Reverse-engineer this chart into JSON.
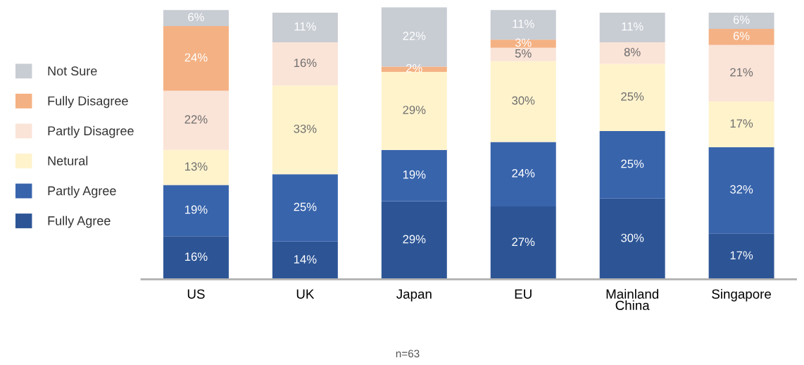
{
  "chart_data": {
    "type": "bar",
    "stacked": true,
    "legend": "left",
    "categories": [
      "US",
      "UK",
      "Japan",
      "EU",
      "Mainland\nChina",
      "Singapore"
    ],
    "series": [
      {
        "name": "Fully Agree",
        "color": "#2d5596",
        "values": [
          16,
          14,
          29,
          27,
          30,
          17
        ],
        "value_labels": [
          "16%",
          "14%",
          "29%",
          "27%",
          "30%",
          "17%"
        ]
      },
      {
        "name": "Partly Agree",
        "color": "#3864ac",
        "values": [
          19,
          25,
          19,
          24,
          25,
          32
        ],
        "value_labels": [
          "19%",
          "25%",
          "19%",
          "24%",
          "25%",
          "32%"
        ]
      },
      {
        "name": "Netural",
        "color": "#fff3cc",
        "values": [
          13,
          33,
          29,
          30,
          25,
          17
        ],
        "value_labels": [
          "13%",
          "33%",
          "29%",
          "30%",
          "25%",
          "17%"
        ]
      },
      {
        "name": "Partly Disagree",
        "color": "#fae3d7",
        "values": [
          22,
          16,
          null,
          5,
          8,
          21
        ],
        "value_labels": [
          "22%",
          "16%",
          null,
          "5%",
          "8%",
          "21%"
        ]
      },
      {
        "name": "Fully Disagree",
        "color": "#f4b183",
        "values": [
          24,
          null,
          2,
          3,
          null,
          6
        ],
        "value_labels": [
          "24%",
          null,
          "2%",
          "3%",
          null,
          "6%"
        ]
      },
      {
        "name": "Not Sure",
        "color": "#c8ccd3",
        "values": [
          6,
          11,
          22,
          11,
          11,
          6
        ],
        "value_labels": [
          "6%",
          "11%",
          "22%",
          "11%",
          "11%",
          "6%"
        ]
      }
    ],
    "annotations": [
      "n=63"
    ]
  }
}
